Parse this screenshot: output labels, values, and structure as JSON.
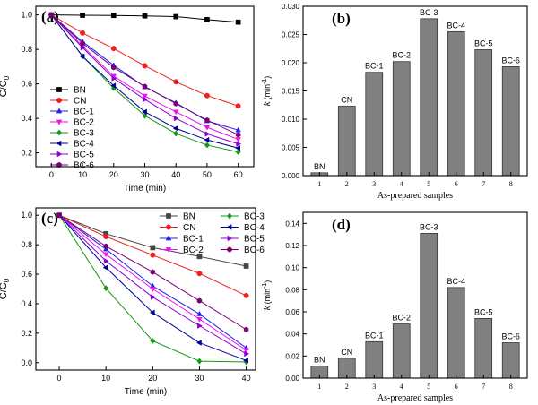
{
  "chart_data": [
    {
      "panel": "(a)",
      "type": "line",
      "xlabel": "Time (min)",
      "ylabel_main": "C/C",
      "ylabel_sub": "0",
      "xlim": [
        -5,
        65
      ],
      "ylim": [
        0.12,
        1.05
      ],
      "xticks": [
        0,
        10,
        20,
        30,
        40,
        50,
        60
      ],
      "yticks": [
        0.2,
        0.4,
        0.6,
        0.8,
        1.0
      ],
      "ytick_labels": [
        "0.2",
        "0.4",
        "0.6",
        "0.8",
        "1.0"
      ],
      "legend_position": "bottom-left",
      "legend_columns": 1,
      "x": [
        0,
        10,
        20,
        30,
        40,
        50,
        60
      ],
      "series": [
        {
          "name": "BN",
          "color": "#000000",
          "marker": "square",
          "values": [
            1.0,
            0.998,
            0.997,
            0.994,
            0.99,
            0.973,
            0.958
          ]
        },
        {
          "name": "CN",
          "color": "#ef1f1f",
          "marker": "circle",
          "values": [
            1.0,
            0.895,
            0.805,
            0.705,
            0.612,
            0.532,
            0.472
          ]
        },
        {
          "name": "BC-1",
          "color": "#1f1fef",
          "marker": "triangle-up",
          "values": [
            1.0,
            0.845,
            0.708,
            0.582,
            0.49,
            0.385,
            0.332
          ]
        },
        {
          "name": "BC-2",
          "color": "#ee11ee",
          "marker": "triangle-down",
          "values": [
            1.0,
            0.818,
            0.645,
            0.53,
            0.438,
            0.348,
            0.278
          ]
        },
        {
          "name": "BC-3",
          "color": "#119911",
          "marker": "diamond",
          "values": [
            1.0,
            0.76,
            0.575,
            0.415,
            0.312,
            0.245,
            0.205
          ]
        },
        {
          "name": "BC-4",
          "color": "#000099",
          "marker": "triangle-left",
          "values": [
            1.0,
            0.76,
            0.59,
            0.438,
            0.342,
            0.275,
            0.228
          ]
        },
        {
          "name": "BC-5",
          "color": "#8a00d4",
          "marker": "triangle-right",
          "values": [
            1.0,
            0.81,
            0.632,
            0.51,
            0.4,
            0.31,
            0.252
          ]
        },
        {
          "name": "BC-6",
          "color": "#770077",
          "marker": "hexagon",
          "values": [
            1.0,
            0.835,
            0.695,
            0.585,
            0.485,
            0.39,
            0.305
          ]
        }
      ]
    },
    {
      "panel": "(b)",
      "type": "bar",
      "xlabel": "As-prepared samples",
      "ylabel_main": "k",
      "ylabel_sub": "(min",
      "ylabel_sup": "-1",
      "ylabel_close": ")",
      "categories": [
        "1",
        "2",
        "3",
        "4",
        "5",
        "6",
        "7",
        "8"
      ],
      "bar_labels": [
        "BN",
        "CN",
        "BC-1",
        "BC-2",
        "BC-3",
        "BC-4",
        "BC-5",
        "BC-6"
      ],
      "values": [
        0.0005,
        0.0123,
        0.0183,
        0.0202,
        0.0278,
        0.0255,
        0.0223,
        0.0193
      ],
      "ylim": [
        0,
        0.03
      ],
      "yticks": [
        0.0,
        0.005,
        0.01,
        0.015,
        0.02,
        0.025,
        0.03
      ],
      "ytick_labels": [
        "0.000",
        "0.005",
        "0.010",
        "0.015",
        "0.020",
        "0.025",
        "0.030"
      ],
      "bar_color": "#808080"
    },
    {
      "panel": "(c)",
      "type": "line",
      "xlabel": "Time (min)",
      "ylabel_main": "C/C",
      "ylabel_sub": "0",
      "xlim": [
        -5,
        42
      ],
      "ylim": [
        -0.05,
        1.05
      ],
      "xticks": [
        0,
        10,
        20,
        30,
        40
      ],
      "yticks": [
        0.0,
        0.2,
        0.4,
        0.6,
        0.8,
        1.0
      ],
      "ytick_labels": [
        "0.0",
        "0.2",
        "0.4",
        "0.6",
        "0.8",
        "1.0"
      ],
      "legend_position": "top-right",
      "legend_columns": 2,
      "x": [
        0,
        10,
        20,
        30,
        40
      ],
      "series": [
        {
          "name": "BN",
          "color": "#444444",
          "marker": "square",
          "values": [
            1.0,
            0.875,
            0.78,
            0.72,
            0.655
          ]
        },
        {
          "name": "CN",
          "color": "#ef1f1f",
          "marker": "circle",
          "values": [
            1.0,
            0.855,
            0.73,
            0.605,
            0.455
          ]
        },
        {
          "name": "BC-1",
          "color": "#1f1fef",
          "marker": "triangle-up",
          "values": [
            1.0,
            0.77,
            0.52,
            0.33,
            0.1
          ]
        },
        {
          "name": "BC-2",
          "color": "#ee11ee",
          "marker": "triangle-down",
          "values": [
            1.0,
            0.735,
            0.5,
            0.295,
            0.085
          ]
        },
        {
          "name": "BC-3",
          "color": "#119911",
          "marker": "diamond",
          "values": [
            1.0,
            0.505,
            0.148,
            0.01,
            0.005
          ]
        },
        {
          "name": "BC-4",
          "color": "#000099",
          "marker": "triangle-left",
          "values": [
            1.0,
            0.645,
            0.34,
            0.135,
            0.015
          ]
        },
        {
          "name": "BC-5",
          "color": "#8a00d4",
          "marker": "triangle-right",
          "values": [
            1.0,
            0.69,
            0.445,
            0.25,
            0.06
          ]
        },
        {
          "name": "BC-6",
          "color": "#770077",
          "marker": "hexagon",
          "values": [
            1.0,
            0.79,
            0.615,
            0.42,
            0.225
          ]
        }
      ]
    },
    {
      "panel": "(d)",
      "type": "bar",
      "xlabel": "As-prepared samples",
      "ylabel_main": "k",
      "ylabel_sub": "(min",
      "ylabel_sup": "-1",
      "ylabel_close": ")",
      "categories": [
        "1",
        "2",
        "3",
        "4",
        "5",
        "6",
        "7",
        "8"
      ],
      "bar_labels": [
        "BN",
        "CN",
        "BC-1",
        "BC-2",
        "BC-3",
        "BC-4",
        "BC-5",
        "BC-6"
      ],
      "values": [
        0.011,
        0.018,
        0.033,
        0.049,
        0.131,
        0.082,
        0.054,
        0.032
      ],
      "ylim": [
        0,
        0.15
      ],
      "yticks": [
        0.0,
        0.02,
        0.04,
        0.06,
        0.08,
        0.1,
        0.12,
        0.14
      ],
      "ytick_labels": [
        "0.00",
        "0.02",
        "0.04",
        "0.06",
        "0.08",
        "0.10",
        "0.12",
        "0.14"
      ],
      "bar_color": "#808080"
    }
  ]
}
